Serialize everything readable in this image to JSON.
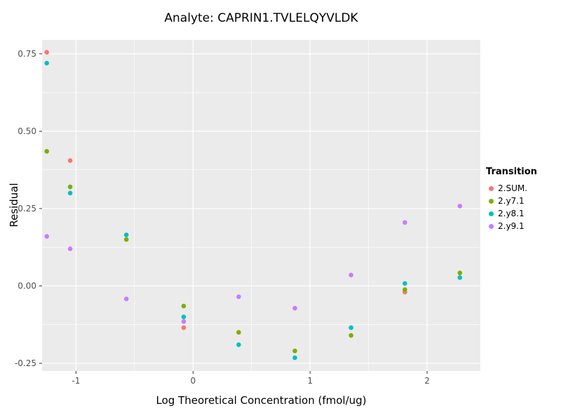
{
  "chart_data": {
    "type": "scatter",
    "title": "Analyte: CAPRIN1.TVLELQYVLDK",
    "xlabel": "Log Theoretical Concentration (fmol/ug)",
    "ylabel": "Residual",
    "legend_title": "Transition",
    "xlim": [
      -1.29,
      2.455
    ],
    "ylim": [
      -0.275,
      0.795
    ],
    "x_ticks": [
      -1,
      0,
      1,
      2
    ],
    "y_ticks": [
      -0.25,
      0.0,
      0.25,
      0.5,
      0.75
    ],
    "x_minor_ticks": [
      -0.5,
      0.5,
      1.5
    ],
    "y_minor_ticks": [
      -0.125,
      0.125,
      0.375,
      0.625
    ],
    "panel_bg": "#EBEBEB",
    "grid_color": "#FFFFFF",
    "tick_label_color": "#4D4D4D",
    "tick_mark_color": "#333333",
    "legend_position": "right",
    "grid": "on",
    "series": [
      {
        "name": "2.SUM.",
        "color": "#F8766D",
        "points": [
          [
            -1.25,
            0.755
          ],
          [
            -1.05,
            0.405
          ],
          [
            -0.08,
            -0.135
          ],
          [
            1.81,
            -0.02
          ]
        ]
      },
      {
        "name": "2.y7.1",
        "color": "#7CAE00",
        "points": [
          [
            -1.25,
            0.435
          ],
          [
            -1.05,
            0.32
          ],
          [
            -0.57,
            0.15
          ],
          [
            -0.08,
            -0.065
          ],
          [
            0.39,
            -0.15
          ],
          [
            0.87,
            -0.21
          ],
          [
            1.35,
            -0.16
          ],
          [
            1.81,
            -0.012
          ],
          [
            2.28,
            0.042
          ]
        ]
      },
      {
        "name": "2.y8.1",
        "color": "#00BFC4",
        "points": [
          [
            -1.25,
            0.72
          ],
          [
            -1.05,
            0.3
          ],
          [
            -0.57,
            0.165
          ],
          [
            -0.08,
            -0.1
          ],
          [
            0.39,
            -0.19
          ],
          [
            0.87,
            -0.232
          ],
          [
            1.35,
            -0.135
          ],
          [
            1.81,
            0.008
          ],
          [
            2.28,
            0.027
          ]
        ]
      },
      {
        "name": "2.y9.1",
        "color": "#C77CFF",
        "points": [
          [
            -1.25,
            0.16
          ],
          [
            -1.05,
            0.12
          ],
          [
            -0.57,
            -0.042
          ],
          [
            -0.08,
            -0.115
          ],
          [
            0.39,
            -0.035
          ],
          [
            0.87,
            -0.072
          ],
          [
            1.35,
            0.035
          ],
          [
            1.81,
            0.205
          ],
          [
            2.28,
            0.258
          ]
        ]
      }
    ]
  }
}
